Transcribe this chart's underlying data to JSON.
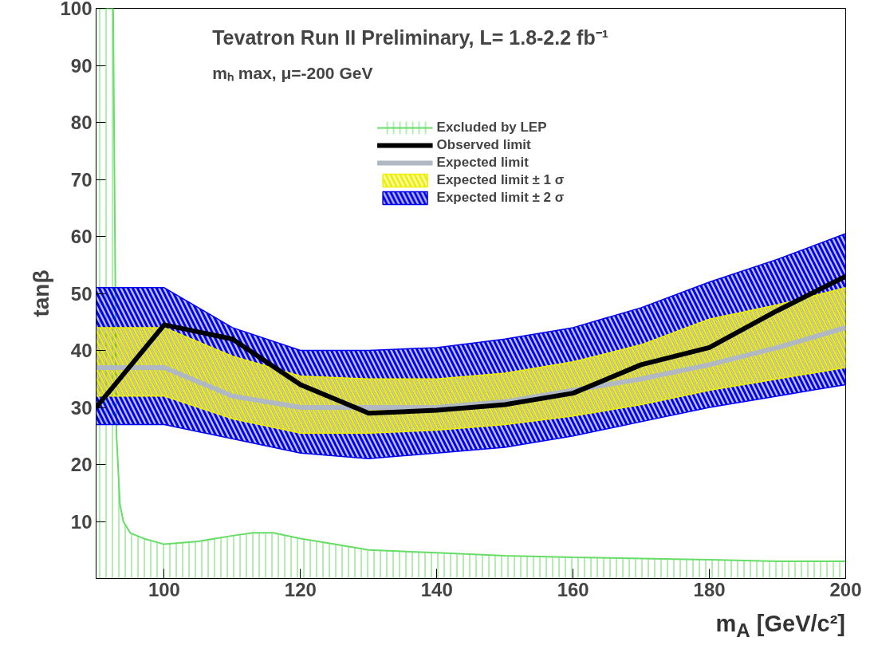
{
  "chart_data": {
    "type": "line",
    "title": "Tevatron Run II Preliminary, L= 1.8-2.2 fb⁻¹",
    "subtitle": "mₕ max, μ=-200 GeV",
    "xlabel": "m$_{A}$ [GeV/c²]",
    "ylabel": "tanβ",
    "xlim": [
      90,
      200
    ],
    "xticks": [
      100,
      120,
      140,
      160,
      180,
      200
    ],
    "ylim": [
      0,
      100
    ],
    "yticks": [
      10,
      20,
      30,
      40,
      50,
      60,
      70,
      80,
      90,
      100
    ],
    "grid": false,
    "legend": "top",
    "series": [
      {
        "name": "Excluded by LEP",
        "type": "area",
        "color": "#66dd66",
        "x": [
          90,
          92.5,
          93,
          93.5,
          94,
          95,
          97,
          100,
          105,
          110,
          113,
          116,
          120,
          125,
          130,
          140,
          150,
          160,
          170,
          180,
          190,
          200
        ],
        "values": [
          100,
          100,
          25,
          13,
          10,
          8,
          7,
          6,
          6.5,
          7.5,
          8,
          8,
          7,
          6,
          5,
          4.5,
          4,
          3.7,
          3.5,
          3.3,
          3,
          3
        ]
      },
      {
        "name": "Expected limit ± 2 σ",
        "type": "line",
        "color": "#0000ee",
        "x": [
          90,
          100,
          110,
          120,
          130,
          140,
          150,
          160,
          170,
          180,
          190,
          200
        ],
        "values": [
          null,
          null,
          null,
          null,
          null,
          null,
          null,
          null,
          null,
          null,
          null,
          null
        ],
        "lower": [
          27,
          27,
          24.5,
          22,
          21,
          22,
          23,
          25,
          27.5,
          30,
          32,
          34
        ],
        "upper": [
          51,
          51,
          44,
          40,
          40,
          40.5,
          42,
          44,
          47.5,
          52,
          56,
          60.5
        ]
      },
      {
        "name": "Expected limit ± 1 σ",
        "type": "line",
        "color": "#eeee00",
        "x": [
          90,
          100,
          110,
          120,
          130,
          140,
          150,
          160,
          170,
          180,
          190,
          200
        ],
        "values": [
          null,
          null,
          null,
          null,
          null,
          null,
          null,
          null,
          null,
          null,
          null,
          null
        ],
        "lower": [
          32,
          32,
          28,
          25.5,
          25.5,
          26,
          27,
          28.5,
          30.5,
          33,
          35,
          37
        ],
        "upper": [
          44,
          44,
          39,
          35.5,
          35,
          35,
          36,
          38,
          41,
          45.5,
          48,
          51
        ]
      },
      {
        "name": "Expected limit",
        "color": "#b0b8c4",
        "x": [
          90,
          100,
          110,
          120,
          130,
          140,
          150,
          160,
          170,
          180,
          190,
          200
        ],
        "values": [
          37,
          37,
          32,
          30,
          30,
          30,
          31,
          33,
          35,
          37.5,
          40.5,
          44
        ]
      },
      {
        "name": "Observed limit",
        "color": "#000000",
        "x": [
          90,
          100,
          110,
          120,
          130,
          140,
          150,
          160,
          170,
          180,
          190,
          200
        ],
        "values": [
          30,
          44.5,
          42,
          34,
          29,
          29.5,
          30.5,
          32.5,
          37.5,
          40.5,
          47,
          53
        ]
      }
    ]
  }
}
